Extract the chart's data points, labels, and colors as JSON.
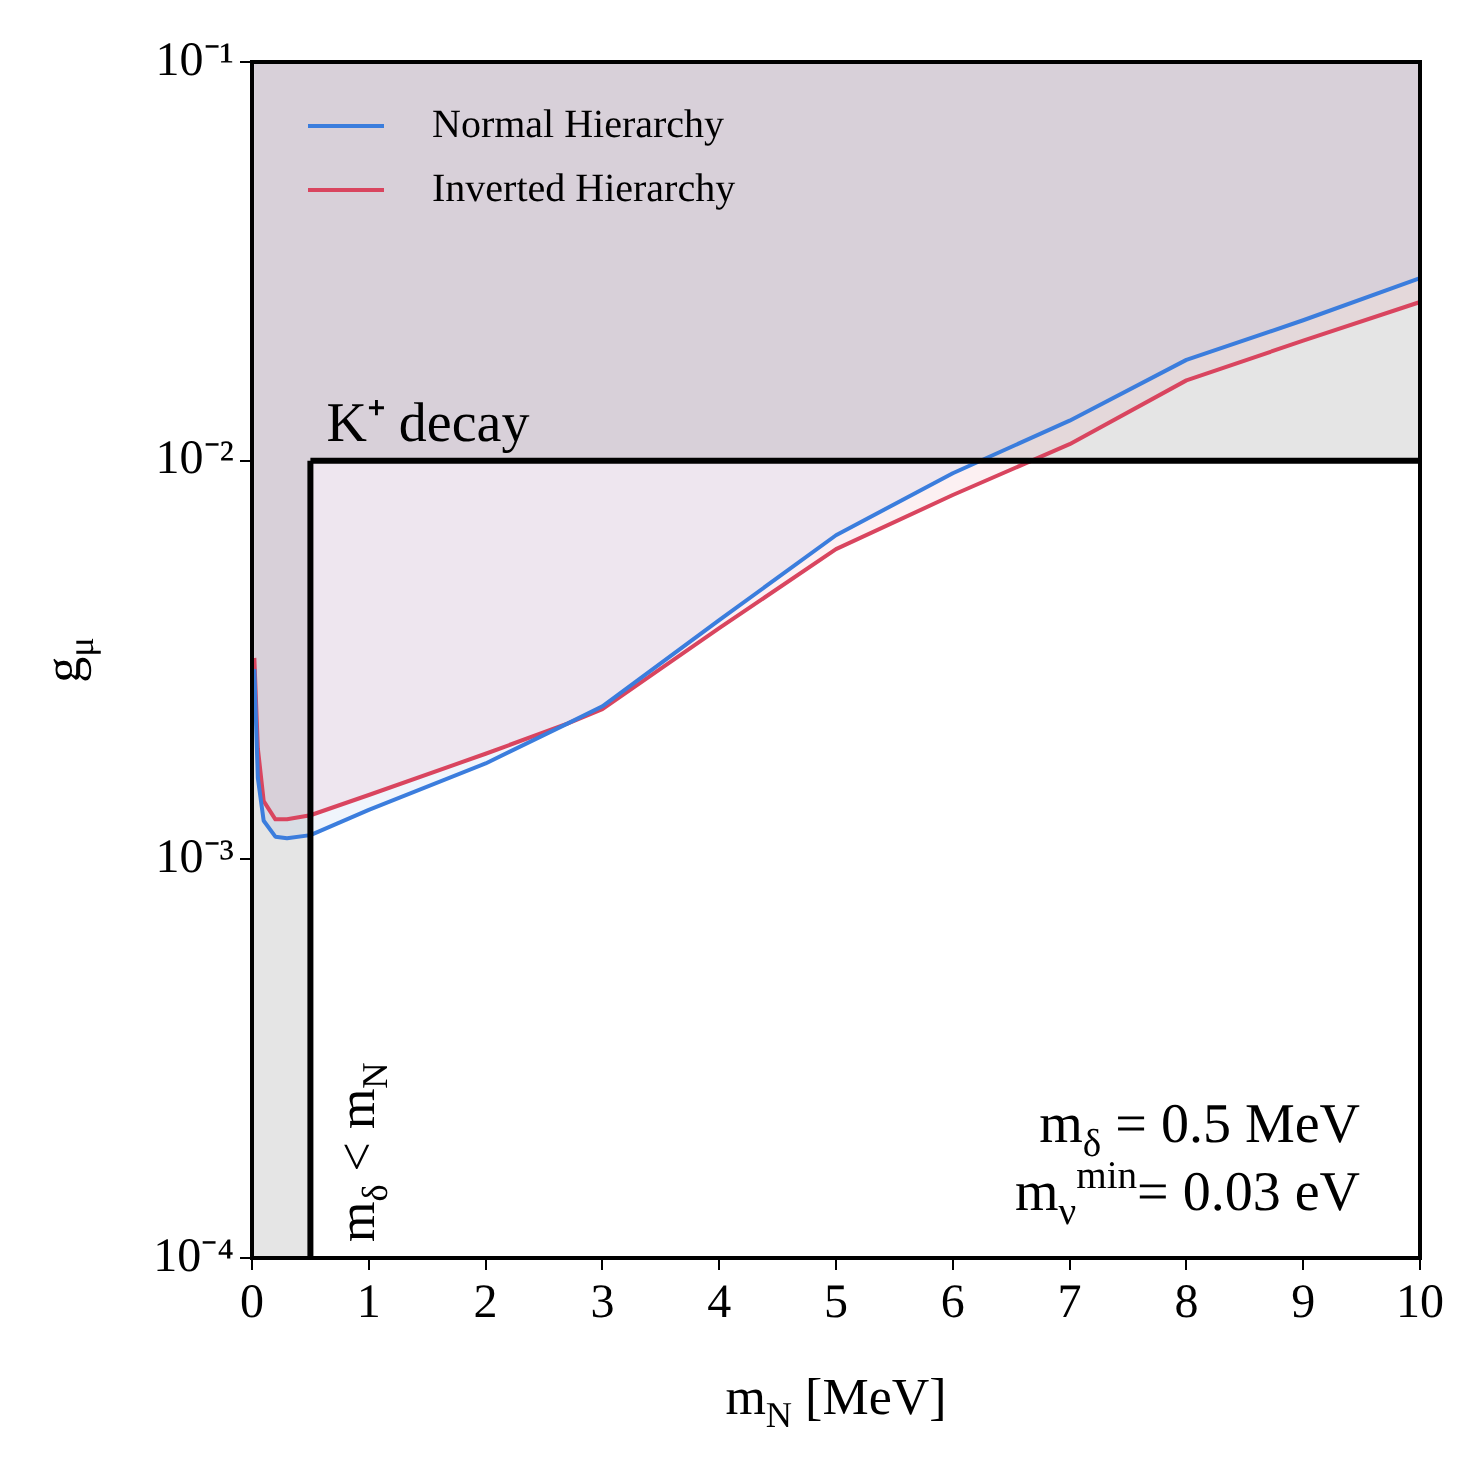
{
  "chart_data": {
    "type": "line",
    "xlabel": "m$_{N}$ [MeV]",
    "ylabel": "g$_{μ}$",
    "x": [
      0.02,
      0.05,
      0.1,
      0.2,
      0.3,
      0.5,
      1,
      2,
      2.7,
      3,
      4,
      5,
      6,
      7,
      8,
      9,
      10
    ],
    "series": [
      {
        "name": "Normal Hierarchy",
        "color": "#3b7ddd",
        "values": [
          0.003,
          0.0016,
          0.00125,
          0.00114,
          0.00113,
          0.00115,
          0.00133,
          0.00174,
          0.00219,
          0.00242,
          0.00398,
          0.0065,
          0.0093,
          0.0126,
          0.0179,
          0.0225,
          0.0287
        ],
        "lower": [
          0.003,
          0.0016,
          0.00125,
          0.00114,
          0.00113,
          0.00115,
          0.00133,
          0.00174,
          0.00219,
          0.00242,
          0.00398,
          0.0065,
          0.0093,
          0.0126,
          0.0179,
          0.0225,
          0.0287
        ],
        "upper": [
          0.1,
          0.1,
          0.1,
          0.1,
          0.1,
          0.1,
          0.1,
          0.1,
          0.1,
          0.1,
          0.1,
          0.1,
          0.1,
          0.1,
          0.1,
          0.1,
          0.1
        ]
      },
      {
        "name": "Inverted Hierarchy",
        "color": "#d9455f",
        "values": [
          0.0032,
          0.0019,
          0.0014,
          0.00126,
          0.00126,
          0.00129,
          0.00145,
          0.00184,
          0.00219,
          0.00238,
          0.0038,
          0.006,
          0.0082,
          0.011,
          0.0159,
          0.02,
          0.025
        ],
        "lower": [
          0.0032,
          0.0019,
          0.0014,
          0.00126,
          0.00126,
          0.00129,
          0.00145,
          0.00184,
          0.00219,
          0.00238,
          0.0038,
          0.006,
          0.0082,
          0.011,
          0.0159,
          0.02,
          0.025
        ],
        "upper": [
          0.1,
          0.1,
          0.1,
          0.1,
          0.1,
          0.1,
          0.1,
          0.1,
          0.1,
          0.1,
          0.1,
          0.1,
          0.1,
          0.1,
          0.1,
          0.1,
          0.1
        ]
      }
    ],
    "xlim": [
      0,
      10
    ],
    "xticks": [
      0,
      1,
      2,
      3,
      4,
      5,
      6,
      7,
      8,
      9,
      10
    ],
    "ylim": [
      0.0001,
      0.1
    ],
    "yticks": [
      {
        "value": 0.0001,
        "label": "10⁻⁴"
      },
      {
        "value": 0.001,
        "label": "10⁻³"
      },
      {
        "value": 0.01,
        "label": "10⁻²"
      },
      {
        "value": 0.1,
        "label": "10⁻¹"
      }
    ],
    "log": "y",
    "grid": false,
    "legend": "top left",
    "marker": "none",
    "line_style": "solid",
    "bands": [
      {
        "axis": "x",
        "from": 0,
        "to": 0.5,
        "color": "#e5e5e5"
      },
      {
        "axis": "y",
        "from": 0.01,
        "to": 0.1,
        "color": "#e5e5e5"
      }
    ],
    "ref_lines": [
      {
        "axis": "x",
        "value": 0.5,
        "label": "m$_{δ}$ < m$_{N}$",
        "color": "#000000"
      },
      {
        "axis": "y",
        "value": 0.01,
        "label": "K⁺ decay",
        "color": "#000000"
      }
    ],
    "annotations": [
      "m$_{δ}$ = 0.5 MeV",
      "m$_{ν}$$^{min}$= 0.03 eV"
    ]
  }
}
